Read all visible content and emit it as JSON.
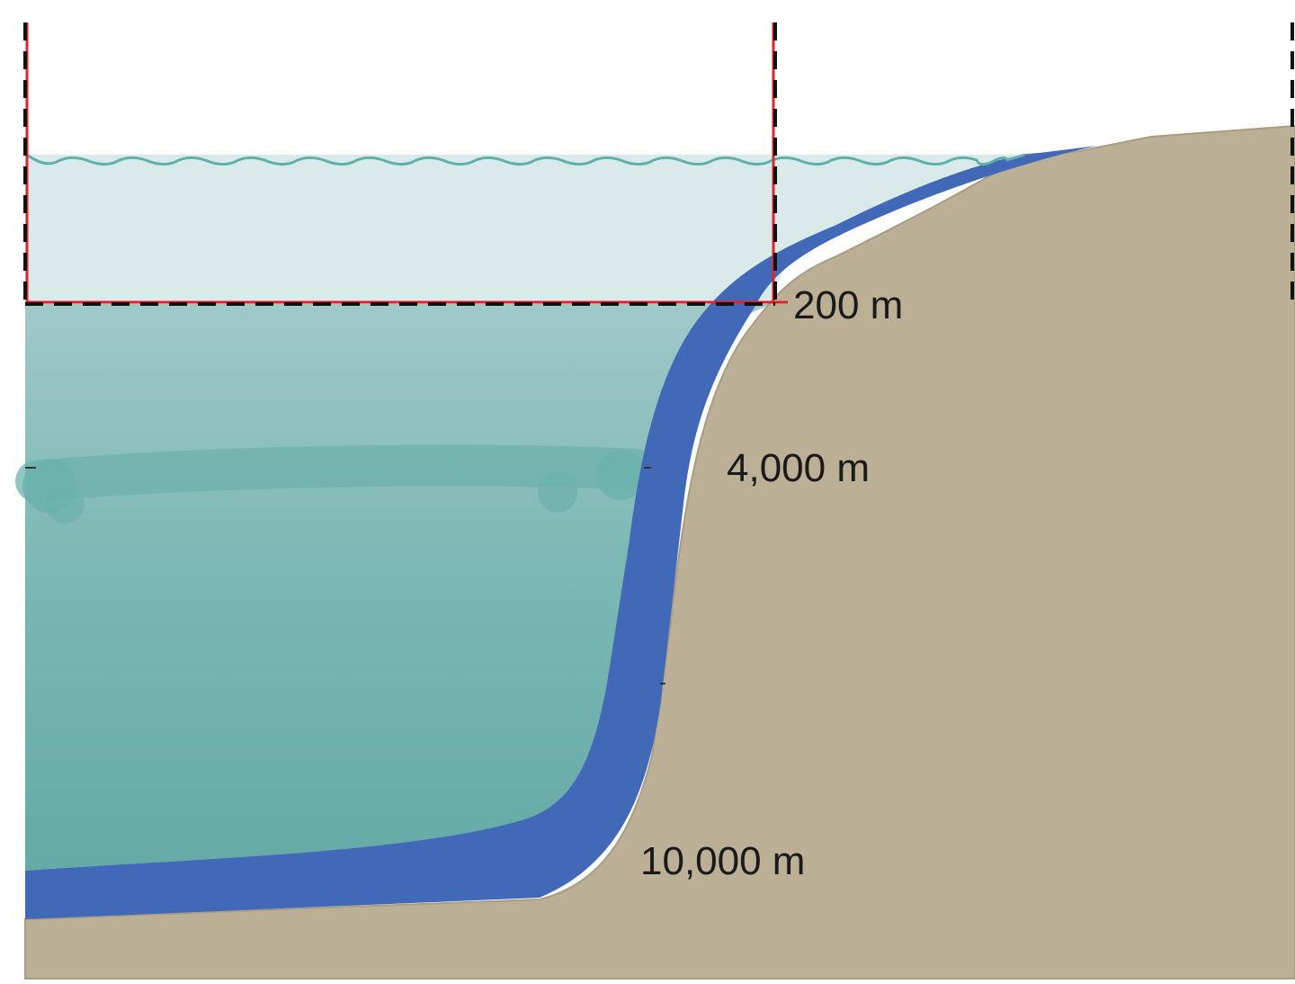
{
  "diagram": {
    "depth_labels": {
      "shallow": "200 m",
      "middle": "4,000 m",
      "deep": "10,000 m"
    },
    "colors": {
      "surface_zone": "#daeaea",
      "mid_zone_top": "#a0c9c8",
      "deep_zone_bottom": "#64aaa6",
      "benthic_layer": "#4169b8",
      "seafloor_land": "#bbaf95",
      "wave_line": "#5fb0aa",
      "highlight_box": "#e0242c",
      "boundary_dash": "#111111"
    }
  }
}
